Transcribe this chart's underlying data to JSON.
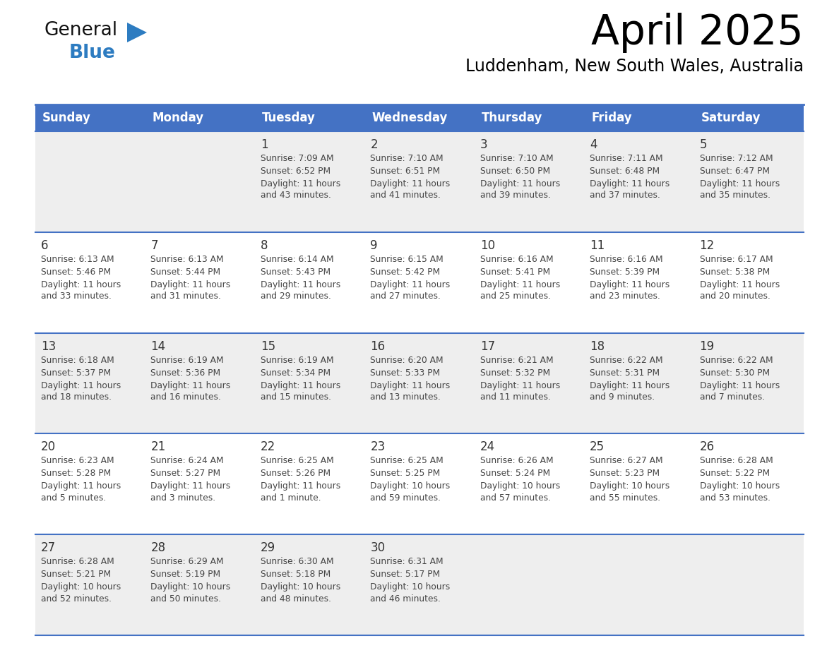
{
  "title": "April 2025",
  "subtitle": "Luddenham, New South Wales, Australia",
  "days_of_week": [
    "Sunday",
    "Monday",
    "Tuesday",
    "Wednesday",
    "Thursday",
    "Friday",
    "Saturday"
  ],
  "header_bg": "#4472C4",
  "header_text": "#FFFFFF",
  "row_bg_light": "#EEEEEE",
  "row_bg_white": "#FFFFFF",
  "row_line_color": "#4472C4",
  "text_color": "#444444",
  "day_number_color": "#333333",
  "calendar_data": [
    [
      {
        "day": "",
        "sunrise": "",
        "sunset": "",
        "daylight": ""
      },
      {
        "day": "",
        "sunrise": "",
        "sunset": "",
        "daylight": ""
      },
      {
        "day": "1",
        "sunrise": "Sunrise: 7:09 AM",
        "sunset": "Sunset: 6:52 PM",
        "daylight": "Daylight: 11 hours\nand 43 minutes."
      },
      {
        "day": "2",
        "sunrise": "Sunrise: 7:10 AM",
        "sunset": "Sunset: 6:51 PM",
        "daylight": "Daylight: 11 hours\nand 41 minutes."
      },
      {
        "day": "3",
        "sunrise": "Sunrise: 7:10 AM",
        "sunset": "Sunset: 6:50 PM",
        "daylight": "Daylight: 11 hours\nand 39 minutes."
      },
      {
        "day": "4",
        "sunrise": "Sunrise: 7:11 AM",
        "sunset": "Sunset: 6:48 PM",
        "daylight": "Daylight: 11 hours\nand 37 minutes."
      },
      {
        "day": "5",
        "sunrise": "Sunrise: 7:12 AM",
        "sunset": "Sunset: 6:47 PM",
        "daylight": "Daylight: 11 hours\nand 35 minutes."
      }
    ],
    [
      {
        "day": "6",
        "sunrise": "Sunrise: 6:13 AM",
        "sunset": "Sunset: 5:46 PM",
        "daylight": "Daylight: 11 hours\nand 33 minutes."
      },
      {
        "day": "7",
        "sunrise": "Sunrise: 6:13 AM",
        "sunset": "Sunset: 5:44 PM",
        "daylight": "Daylight: 11 hours\nand 31 minutes."
      },
      {
        "day": "8",
        "sunrise": "Sunrise: 6:14 AM",
        "sunset": "Sunset: 5:43 PM",
        "daylight": "Daylight: 11 hours\nand 29 minutes."
      },
      {
        "day": "9",
        "sunrise": "Sunrise: 6:15 AM",
        "sunset": "Sunset: 5:42 PM",
        "daylight": "Daylight: 11 hours\nand 27 minutes."
      },
      {
        "day": "10",
        "sunrise": "Sunrise: 6:16 AM",
        "sunset": "Sunset: 5:41 PM",
        "daylight": "Daylight: 11 hours\nand 25 minutes."
      },
      {
        "day": "11",
        "sunrise": "Sunrise: 6:16 AM",
        "sunset": "Sunset: 5:39 PM",
        "daylight": "Daylight: 11 hours\nand 23 minutes."
      },
      {
        "day": "12",
        "sunrise": "Sunrise: 6:17 AM",
        "sunset": "Sunset: 5:38 PM",
        "daylight": "Daylight: 11 hours\nand 20 minutes."
      }
    ],
    [
      {
        "day": "13",
        "sunrise": "Sunrise: 6:18 AM",
        "sunset": "Sunset: 5:37 PM",
        "daylight": "Daylight: 11 hours\nand 18 minutes."
      },
      {
        "day": "14",
        "sunrise": "Sunrise: 6:19 AM",
        "sunset": "Sunset: 5:36 PM",
        "daylight": "Daylight: 11 hours\nand 16 minutes."
      },
      {
        "day": "15",
        "sunrise": "Sunrise: 6:19 AM",
        "sunset": "Sunset: 5:34 PM",
        "daylight": "Daylight: 11 hours\nand 15 minutes."
      },
      {
        "day": "16",
        "sunrise": "Sunrise: 6:20 AM",
        "sunset": "Sunset: 5:33 PM",
        "daylight": "Daylight: 11 hours\nand 13 minutes."
      },
      {
        "day": "17",
        "sunrise": "Sunrise: 6:21 AM",
        "sunset": "Sunset: 5:32 PM",
        "daylight": "Daylight: 11 hours\nand 11 minutes."
      },
      {
        "day": "18",
        "sunrise": "Sunrise: 6:22 AM",
        "sunset": "Sunset: 5:31 PM",
        "daylight": "Daylight: 11 hours\nand 9 minutes."
      },
      {
        "day": "19",
        "sunrise": "Sunrise: 6:22 AM",
        "sunset": "Sunset: 5:30 PM",
        "daylight": "Daylight: 11 hours\nand 7 minutes."
      }
    ],
    [
      {
        "day": "20",
        "sunrise": "Sunrise: 6:23 AM",
        "sunset": "Sunset: 5:28 PM",
        "daylight": "Daylight: 11 hours\nand 5 minutes."
      },
      {
        "day": "21",
        "sunrise": "Sunrise: 6:24 AM",
        "sunset": "Sunset: 5:27 PM",
        "daylight": "Daylight: 11 hours\nand 3 minutes."
      },
      {
        "day": "22",
        "sunrise": "Sunrise: 6:25 AM",
        "sunset": "Sunset: 5:26 PM",
        "daylight": "Daylight: 11 hours\nand 1 minute."
      },
      {
        "day": "23",
        "sunrise": "Sunrise: 6:25 AM",
        "sunset": "Sunset: 5:25 PM",
        "daylight": "Daylight: 10 hours\nand 59 minutes."
      },
      {
        "day": "24",
        "sunrise": "Sunrise: 6:26 AM",
        "sunset": "Sunset: 5:24 PM",
        "daylight": "Daylight: 10 hours\nand 57 minutes."
      },
      {
        "day": "25",
        "sunrise": "Sunrise: 6:27 AM",
        "sunset": "Sunset: 5:23 PM",
        "daylight": "Daylight: 10 hours\nand 55 minutes."
      },
      {
        "day": "26",
        "sunrise": "Sunrise: 6:28 AM",
        "sunset": "Sunset: 5:22 PM",
        "daylight": "Daylight: 10 hours\nand 53 minutes."
      }
    ],
    [
      {
        "day": "27",
        "sunrise": "Sunrise: 6:28 AM",
        "sunset": "Sunset: 5:21 PM",
        "daylight": "Daylight: 10 hours\nand 52 minutes."
      },
      {
        "day": "28",
        "sunrise": "Sunrise: 6:29 AM",
        "sunset": "Sunset: 5:19 PM",
        "daylight": "Daylight: 10 hours\nand 50 minutes."
      },
      {
        "day": "29",
        "sunrise": "Sunrise: 6:30 AM",
        "sunset": "Sunset: 5:18 PM",
        "daylight": "Daylight: 10 hours\nand 48 minutes."
      },
      {
        "day": "30",
        "sunrise": "Sunrise: 6:31 AM",
        "sunset": "Sunset: 5:17 PM",
        "daylight": "Daylight: 10 hours\nand 46 minutes."
      },
      {
        "day": "",
        "sunrise": "",
        "sunset": "",
        "daylight": ""
      },
      {
        "day": "",
        "sunrise": "",
        "sunset": "",
        "daylight": ""
      },
      {
        "day": "",
        "sunrise": "",
        "sunset": "",
        "daylight": ""
      }
    ]
  ],
  "logo_color_general": "#111111",
  "logo_color_blue": "#2D7CC1",
  "logo_triangle_color": "#2D7CC1"
}
